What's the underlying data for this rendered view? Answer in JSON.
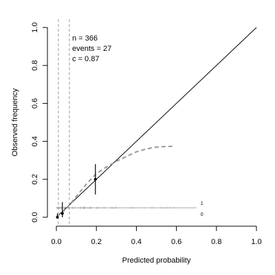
{
  "chart_data": {
    "type": "scatter",
    "subtype": "calibration plot",
    "xlabel": "Predicted probability",
    "ylabel": "Observed frequency",
    "xlim": [
      0,
      1
    ],
    "ylim": [
      0,
      1
    ],
    "x_ticks": [
      "0.0",
      "0.2",
      "0.4",
      "0.6",
      "0.8",
      "1.0"
    ],
    "y_ticks": [
      "0.0",
      "0.2",
      "0.4",
      "0.6",
      "0.8",
      "1.0"
    ],
    "grid": false,
    "annotation": {
      "n": "n = 366",
      "events": "events = 27",
      "c": "c = 0.87"
    },
    "reference_line": {
      "from": [
        0,
        0
      ],
      "to": [
        1,
        1
      ],
      "style": "solid",
      "color": "#000000"
    },
    "vertical_lines": [
      0.01,
      0.065
    ],
    "grouped_points": [
      {
        "x": 0.005,
        "y": 0.0,
        "lo": 0.0,
        "hi": 0.02
      },
      {
        "x": 0.03,
        "y": 0.02,
        "lo": 0.0,
        "hi": 0.08
      },
      {
        "x": 0.195,
        "y": 0.2,
        "lo": 0.12,
        "hi": 0.28
      }
    ],
    "smooth_curve": {
      "style": "dashed",
      "color": "#999999",
      "x": [
        0.0,
        0.05,
        0.1,
        0.15,
        0.2,
        0.25,
        0.3,
        0.35,
        0.4,
        0.45,
        0.5,
        0.55,
        0.58
      ],
      "y": [
        0.0,
        0.045,
        0.11,
        0.175,
        0.23,
        0.265,
        0.295,
        0.32,
        0.345,
        0.36,
        0.37,
        0.373,
        0.374
      ]
    },
    "rug": {
      "baseline_y": 0.05,
      "x_range": [
        0,
        0.7
      ],
      "labels": [
        "1",
        "0"
      ],
      "color": "#aaaaaa"
    }
  }
}
